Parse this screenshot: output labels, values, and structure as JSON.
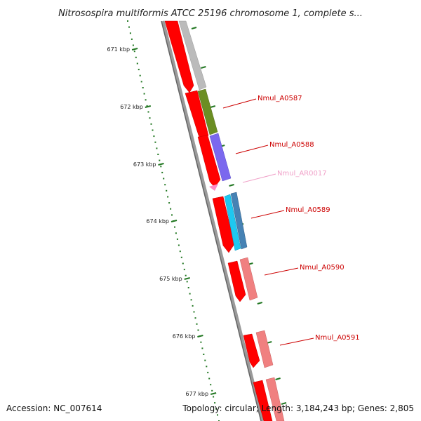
{
  "title": "Nitrosospira multiformis ATCC 25196 chromosome 1, complete s...",
  "footer": {
    "accession": "Accession: NC_007614",
    "topology": "Topology: circular; Length: 3,184,243 bp; Genes: 2,805"
  },
  "ticks": [
    "671 kbp",
    "672 kbp",
    "673 kbp",
    "674 kbp",
    "675 kbp",
    "676 kbp",
    "677 kbp"
  ],
  "genes": [
    {
      "label": "Nmul_A0587",
      "color": "#cc0000"
    },
    {
      "label": "Nmul_A0588",
      "color": "#cc0000"
    },
    {
      "label": "Nmul_AR0017",
      "color": "#f0a0c8"
    },
    {
      "label": "Nmul_A0589",
      "color": "#cc0000"
    },
    {
      "label": "Nmul_A0590",
      "color": "#cc0000"
    },
    {
      "label": "Nmul_A0591",
      "color": "#cc0000"
    }
  ],
  "colors": {
    "backbone": "#888888",
    "cds": "#ff0000",
    "tick": "#227722",
    "gray_feature": "#bbbbbb",
    "olive_feature": "#6b8e23",
    "purple_feature": "#7b68ee",
    "cyan_feature": "#1ec8f0",
    "steel_feature": "#4682b4",
    "salmon_feature": "#f08080",
    "rrna_feature": "#ff8cc8"
  }
}
